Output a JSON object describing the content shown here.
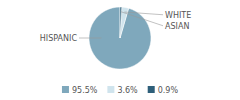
{
  "chart_data": {
    "type": "pie",
    "categories": [
      "HISPANIC",
      "WHITE",
      "ASIAN"
    ],
    "values": [
      95.5,
      3.6,
      0.9
    ],
    "value_labels": [
      "95.5%",
      "3.6%",
      "0.9%"
    ],
    "colors": [
      "#7fa8bc",
      "#d0e4ed",
      "#2e5f7a"
    ],
    "legend": "bottom"
  }
}
